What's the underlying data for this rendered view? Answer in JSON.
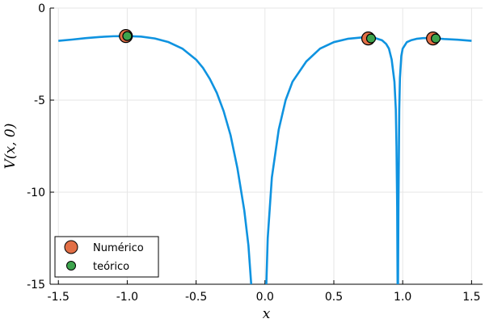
{
  "chart_data": {
    "type": "line",
    "xlabel": "x",
    "ylabel": "V(x, 0)",
    "xlim": [
      -1.56,
      1.58
    ],
    "ylim": [
      -15,
      0
    ],
    "x_ticks": [
      -1.5,
      -1.0,
      -0.5,
      0.0,
      0.5,
      1.0,
      1.5
    ],
    "x_tick_labels": [
      "-1.5",
      "-1.0",
      "-0.5",
      "0.0",
      "0.5",
      "1.0",
      "1.5"
    ],
    "y_ticks": [
      0,
      -5,
      -10,
      -15
    ],
    "y_tick_labels": [
      "0",
      "-5",
      "-10",
      "-15"
    ],
    "grid": true,
    "legend_position": "bottom-left",
    "line_series": {
      "color": "#0f93e0",
      "x": [
        -1.5,
        -1.4,
        -1.3,
        -1.2,
        -1.1,
        -1.0,
        -0.9,
        -0.8,
        -0.7,
        -0.6,
        -0.5,
        -0.45,
        -0.4,
        -0.35,
        -0.3,
        -0.25,
        -0.2,
        -0.15,
        -0.12,
        -0.1,
        0.01,
        0.02,
        0.05,
        0.1,
        0.15,
        0.2,
        0.3,
        0.4,
        0.5,
        0.6,
        0.7,
        0.75,
        0.8,
        0.85,
        0.88,
        0.9,
        0.92,
        0.94,
        0.95,
        0.955,
        0.96,
        0.963,
        0.966,
        0.969,
        0.975,
        0.98,
        0.99,
        1.0,
        1.03,
        1.06,
        1.1,
        1.15,
        1.2,
        1.25,
        1.3,
        1.4,
        1.5
      ],
      "y": [
        -1.78,
        -1.71,
        -1.63,
        -1.57,
        -1.53,
        -1.52,
        -1.55,
        -1.65,
        -1.85,
        -2.2,
        -2.8,
        -3.25,
        -3.85,
        -4.6,
        -5.6,
        -6.9,
        -8.7,
        -11.0,
        -12.9,
        -15.0,
        -15.0,
        -12.5,
        -9.2,
        -6.6,
        -5.0,
        -4.0,
        -2.9,
        -2.2,
        -1.85,
        -1.67,
        -1.6,
        -1.6,
        -1.63,
        -1.75,
        -1.95,
        -2.2,
        -2.8,
        -4.0,
        -5.5,
        -7.5,
        -10.8,
        -15.0,
        -15.0,
        -10.8,
        -5.5,
        -3.8,
        -2.6,
        -2.2,
        -1.85,
        -1.75,
        -1.67,
        -1.63,
        -1.63,
        -1.65,
        -1.68,
        -1.72,
        -1.78
      ]
    },
    "series": [
      {
        "name": "Numérico",
        "color": "#e26f46",
        "points": [
          [
            -1.01,
            -1.52
          ],
          [
            0.75,
            -1.65
          ],
          [
            1.22,
            -1.65
          ]
        ]
      },
      {
        "name": "teórico",
        "color": "#3da44d",
        "points": [
          [
            -1.0,
            -1.52
          ],
          [
            0.77,
            -1.65
          ],
          [
            1.24,
            -1.65
          ]
        ]
      }
    ]
  }
}
